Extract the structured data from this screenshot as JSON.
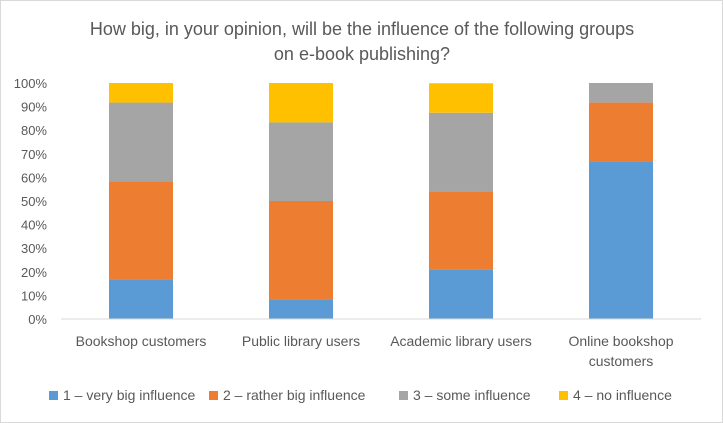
{
  "chart_data": {
    "type": "bar",
    "stacked": true,
    "title_lines": [
      "How big, in your opinion, will be the influence of the following groups",
      "on e-book publishing?"
    ],
    "categories": [
      [
        "Bookshop customers"
      ],
      [
        "Public library users"
      ],
      [
        "Academic library users"
      ],
      [
        "Online bookshop",
        "customers"
      ]
    ],
    "series": [
      {
        "name": "1 – very big influence",
        "color": "#5b9bd5",
        "values": [
          16.7,
          8.3,
          20.8,
          66.7
        ]
      },
      {
        "name": "2 – rather big influence",
        "color": "#ed7d31",
        "values": [
          41.7,
          41.7,
          33.3,
          25.0
        ]
      },
      {
        "name": "3 – some influence",
        "color": "#a5a5a5",
        "values": [
          33.3,
          33.3,
          33.3,
          8.3
        ]
      },
      {
        "name": "4 – no influence",
        "color": "#ffc000",
        "values": [
          8.3,
          16.7,
          12.5,
          0.0
        ]
      }
    ],
    "y_ticks": [
      "0%",
      "10%",
      "20%",
      "30%",
      "40%",
      "50%",
      "60%",
      "70%",
      "80%",
      "90%",
      "100%"
    ],
    "ylim": [
      0,
      100
    ],
    "grid": false,
    "legend_position": "bottom"
  }
}
